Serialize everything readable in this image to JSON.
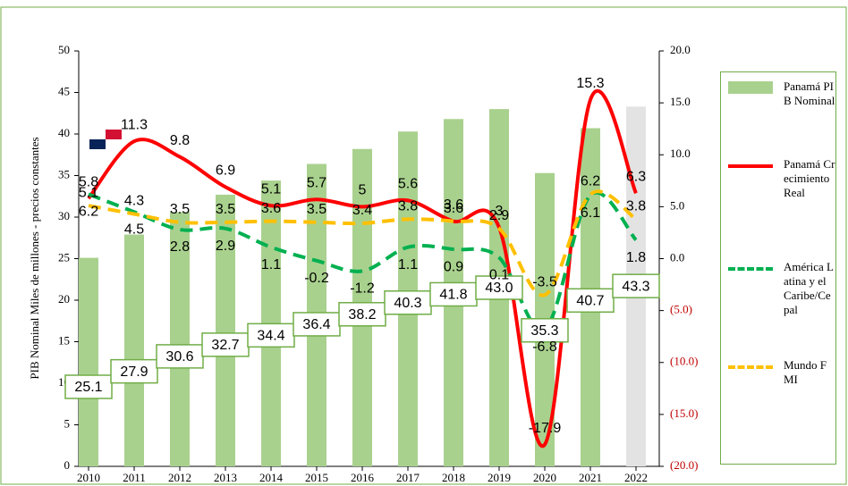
{
  "chart_data": {
    "type": "combo",
    "y_axis_label": "PIB Nominal Miles de millones - precios constantes",
    "categories": [
      "2010",
      "2011",
      "2012",
      "2013",
      "2014",
      "2015",
      "2016",
      "2017",
      "2018",
      "2019",
      "2020",
      "2021",
      "2022"
    ],
    "ylim": [
      0,
      50
    ],
    "yticks": [
      0,
      5,
      10,
      15,
      20,
      25,
      30,
      35,
      40,
      45,
      50
    ],
    "y2lim": [
      -20,
      20
    ],
    "y2ticks": [
      {
        "value": -20,
        "label": "(20.0)"
      },
      {
        "value": -15,
        "label": "(15.0)"
      },
      {
        "value": -10,
        "label": "(10.0)"
      },
      {
        "value": -5,
        "label": "(5.0)"
      },
      {
        "value": 0,
        "label": "0.0"
      },
      {
        "value": 5,
        "label": "5.0"
      },
      {
        "value": 10,
        "label": "10.0"
      },
      {
        "value": 15,
        "label": "15.0"
      },
      {
        "value": 20,
        "label": "20.0"
      }
    ],
    "negative_tick_color": "#c00000",
    "series": [
      {
        "name": "Panamá PIB Nominal",
        "kind": "bar",
        "color": "#a9d18e",
        "bar_colors": [
          "#a9d18e",
          "#a9d18e",
          "#a9d18e",
          "#a9d18e",
          "#a9d18e",
          "#a9d18e",
          "#a9d18e",
          "#a9d18e",
          "#a9d18e",
          "#a9d18e",
          "#a9d18e",
          "#a9d18e",
          "#e3e3e3"
        ],
        "values": [
          25.1,
          27.9,
          30.6,
          32.7,
          34.4,
          36.4,
          38.2,
          40.3,
          41.8,
          43.0,
          35.3,
          40.7,
          43.3
        ],
        "value_labels": [
          "25.1",
          "27.9",
          "30.6",
          "32.7",
          "34.4",
          "36.4",
          "38.2",
          "40.3",
          "41.8",
          "43.0",
          "35.3",
          "40.7",
          "43.3"
        ]
      },
      {
        "name": "Panamá Crecimiento Real",
        "kind": "line",
        "axis": "y2",
        "color": "#ff0000",
        "dash": false,
        "values": [
          5.8,
          11.3,
          9.8,
          6.9,
          5.1,
          5.7,
          5.0,
          5.6,
          3.6,
          3.0,
          -17.9,
          15.3,
          6.3
        ]
      },
      {
        "name": "América Latina y el Caribe/Cepal",
        "kind": "line",
        "axis": "y2",
        "color": "#00b050",
        "dash": true,
        "values": [
          6.2,
          4.5,
          2.8,
          2.9,
          1.1,
          -0.2,
          -1.2,
          1.1,
          0.9,
          0.1,
          -6.8,
          6.1,
          1.8
        ]
      },
      {
        "name": "Mundo FMI",
        "kind": "line",
        "axis": "y2",
        "color": "#ffc000",
        "dash": true,
        "values": [
          5.1,
          4.3,
          3.5,
          3.5,
          3.6,
          3.5,
          3.4,
          3.8,
          3.6,
          2.9,
          -3.5,
          6.2,
          3.8
        ]
      }
    ]
  }
}
